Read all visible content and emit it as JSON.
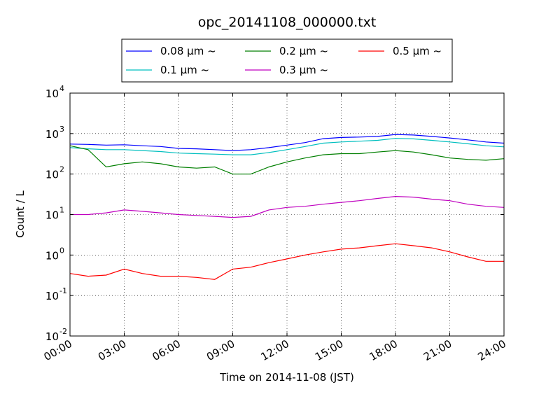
{
  "chart_data": {
    "type": "line",
    "title": "opc_20141108_000000.txt",
    "xlabel": "Time on 2014-11-08 (JST)",
    "ylabel": "Count / L",
    "xlim": [
      "00:00",
      "24:00"
    ],
    "ylim": [
      0.01,
      10000
    ],
    "yscale": "log",
    "grid": true,
    "legend_position": "top-center",
    "x_ticks": [
      "00:00",
      "03:00",
      "06:00",
      "09:00",
      "12:00",
      "15:00",
      "18:00",
      "21:00",
      "24:00"
    ],
    "y_ticks": [
      {
        "base": "10",
        "exp": "-2"
      },
      {
        "base": "10",
        "exp": "-1"
      },
      {
        "base": "10",
        "exp": "0"
      },
      {
        "base": "10",
        "exp": "1"
      },
      {
        "base": "10",
        "exp": "2"
      },
      {
        "base": "10",
        "exp": "3"
      },
      {
        "base": "10",
        "exp": "4"
      }
    ],
    "series": [
      {
        "name": "0.08 μm ~",
        "color": "#0000ff",
        "x": [
          "00:00",
          "01:00",
          "02:00",
          "03:00",
          "04:00",
          "05:00",
          "06:00",
          "07:00",
          "08:00",
          "09:00",
          "10:00",
          "11:00",
          "12:00",
          "13:00",
          "14:00",
          "15:00",
          "16:00",
          "17:00",
          "18:00",
          "19:00",
          "20:00",
          "21:00",
          "22:00",
          "23:00",
          "24:00"
        ],
        "y": [
          550,
          540,
          520,
          530,
          500,
          480,
          430,
          420,
          400,
          380,
          400,
          450,
          520,
          600,
          750,
          800,
          820,
          850,
          950,
          920,
          850,
          780,
          700,
          620,
          580
        ]
      },
      {
        "name": "0.1 μm ~",
        "color": "#00bfbf",
        "x": [
          "00:00",
          "01:00",
          "02:00",
          "03:00",
          "04:00",
          "05:00",
          "06:00",
          "07:00",
          "08:00",
          "09:00",
          "10:00",
          "11:00",
          "12:00",
          "13:00",
          "14:00",
          "15:00",
          "16:00",
          "17:00",
          "18:00",
          "19:00",
          "20:00",
          "21:00",
          "22:00",
          "23:00",
          "24:00"
        ],
        "y": [
          450,
          420,
          400,
          400,
          380,
          360,
          330,
          320,
          310,
          300,
          300,
          340,
          400,
          480,
          580,
          620,
          650,
          680,
          760,
          740,
          680,
          620,
          560,
          500,
          470
        ]
      },
      {
        "name": "0.2 μm ~",
        "color": "#007f00",
        "x": [
          "00:00",
          "01:00",
          "02:00",
          "03:00",
          "04:00",
          "05:00",
          "06:00",
          "07:00",
          "08:00",
          "09:00",
          "10:00",
          "11:00",
          "12:00",
          "13:00",
          "14:00",
          "15:00",
          "16:00",
          "17:00",
          "18:00",
          "19:00",
          "20:00",
          "21:00",
          "22:00",
          "23:00",
          "24:00"
        ],
        "y": [
          500,
          400,
          150,
          180,
          200,
          180,
          150,
          140,
          150,
          100,
          100,
          150,
          200,
          250,
          300,
          320,
          320,
          350,
          380,
          350,
          300,
          250,
          230,
          220,
          240
        ]
      },
      {
        "name": "0.3 μm ~",
        "color": "#bf00bf",
        "x": [
          "00:00",
          "01:00",
          "02:00",
          "03:00",
          "04:00",
          "05:00",
          "06:00",
          "07:00",
          "08:00",
          "09:00",
          "10:00",
          "11:00",
          "12:00",
          "13:00",
          "14:00",
          "15:00",
          "16:00",
          "17:00",
          "18:00",
          "19:00",
          "20:00",
          "21:00",
          "22:00",
          "23:00",
          "24:00"
        ],
        "y": [
          10,
          10,
          11,
          13,
          12,
          11,
          10,
          9.5,
          9,
          8.5,
          9,
          13,
          15,
          16,
          18,
          20,
          22,
          25,
          28,
          27,
          24,
          22,
          18,
          16,
          15
        ]
      },
      {
        "name": "0.5 μm ~",
        "color": "#ff0000",
        "x": [
          "00:00",
          "01:00",
          "02:00",
          "03:00",
          "04:00",
          "05:00",
          "06:00",
          "07:00",
          "08:00",
          "09:00",
          "10:00",
          "11:00",
          "12:00",
          "13:00",
          "14:00",
          "15:00",
          "16:00",
          "17:00",
          "18:00",
          "19:00",
          "20:00",
          "21:00",
          "22:00",
          "23:00",
          "24:00"
        ],
        "y": [
          0.35,
          0.3,
          0.32,
          0.45,
          0.35,
          0.3,
          0.3,
          0.28,
          0.25,
          0.45,
          0.5,
          0.65,
          0.8,
          1.0,
          1.2,
          1.4,
          1.5,
          1.7,
          1.9,
          1.7,
          1.5,
          1.2,
          0.9,
          0.7,
          0.7
        ]
      }
    ]
  }
}
